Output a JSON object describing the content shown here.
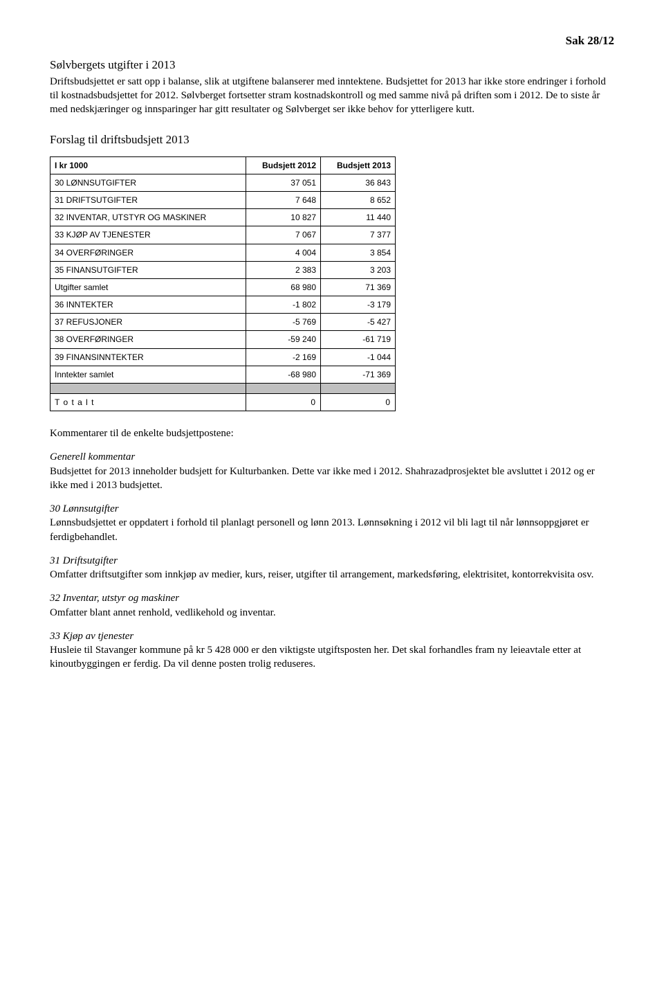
{
  "header": {
    "sak": "Sak 28/12"
  },
  "intro": {
    "title": "Sølvbergets utgifter i 2013",
    "p1": "Driftsbudsjettet er satt opp i balanse, slik at utgiftene balanserer med inntektene. Budsjettet for 2013 har ikke store endringer i forhold til kostnadsbudsjettet for 2012. Sølvberget fortsetter stram kostnadskontroll og med samme nivå på driften som i 2012. De to siste år med nedskjæringer og innsparinger har gitt resultater og Sølvberget ser ikke behov for ytterligere kutt."
  },
  "forslag_title": "Forslag til driftsbudsjett 2013",
  "budget_table": {
    "col0": "I kr 1000",
    "col1": "Budsjett 2012",
    "col2": "Budsjett 2013",
    "rows": [
      {
        "label": "30 LØNNSUTGIFTER",
        "v1": "37 051",
        "v2": "36 843"
      },
      {
        "label": "31 DRIFTSUTGIFTER",
        "v1": "7 648",
        "v2": "8 652"
      },
      {
        "label": "32 INVENTAR, UTSTYR OG MASKINER",
        "v1": "10 827",
        "v2": "11 440"
      },
      {
        "label": "33 KJØP AV TJENESTER",
        "v1": "7 067",
        "v2": "7 377"
      },
      {
        "label": "34 OVERFØRINGER",
        "v1": "4 004",
        "v2": "3 854"
      },
      {
        "label": "35 FINANSUTGIFTER",
        "v1": "2 383",
        "v2": "3 203"
      },
      {
        "label": "Utgifter samlet",
        "v1": "68 980",
        "v2": "71 369"
      },
      {
        "label": "36 INNTEKTER",
        "v1": "-1 802",
        "v2": "-3 179"
      },
      {
        "label": "37 REFUSJONER",
        "v1": "-5 769",
        "v2": "-5 427"
      },
      {
        "label": "38 OVERFØRINGER",
        "v1": "-59 240",
        "v2": "-61 719"
      },
      {
        "label": "39 FINANSINNTEKTER",
        "v1": "-2 169",
        "v2": "-1 044"
      },
      {
        "label": "Inntekter samlet",
        "v1": "-68 980",
        "v2": "-71 369"
      }
    ],
    "total": {
      "label": "T o t a l t",
      "v1": "0",
      "v2": "0"
    }
  },
  "comments": {
    "heading": "Kommentarer til de enkelte budsjettpostene:",
    "generell": {
      "label": "Generell kommentar",
      "text": "Budsjettet for 2013 inneholder budsjett for Kulturbanken. Dette var ikke med i 2012. Shahrazadprosjektet ble avsluttet i 2012 og er ikke med i 2013 budsjettet."
    },
    "c30": {
      "label": "30 Lønnsutgifter",
      "text": "Lønnsbudsjettet er oppdatert i forhold til planlagt personell og lønn 2013. Lønnsøkning i 2012 vil bli lagt til når lønnsoppgjøret er ferdigbehandlet."
    },
    "c31": {
      "label": "31 Driftsutgifter",
      "text": "Omfatter driftsutgifter som innkjøp av medier, kurs, reiser, utgifter til arrangement, markedsføring, elektrisitet, kontorrekvisita osv."
    },
    "c32": {
      "label": "32 Inventar, utstyr og maskiner",
      "text": "Omfatter blant annet renhold, vedlikehold og inventar."
    },
    "c33": {
      "label": "33 Kjøp av tjenester",
      "text": "Husleie til Stavanger kommune på kr 5 428 000 er den viktigste utgiftsposten her. Det skal forhandles fram ny leieavtale etter at kinoutbyggingen er ferdig. Da vil denne posten trolig reduseres."
    }
  }
}
